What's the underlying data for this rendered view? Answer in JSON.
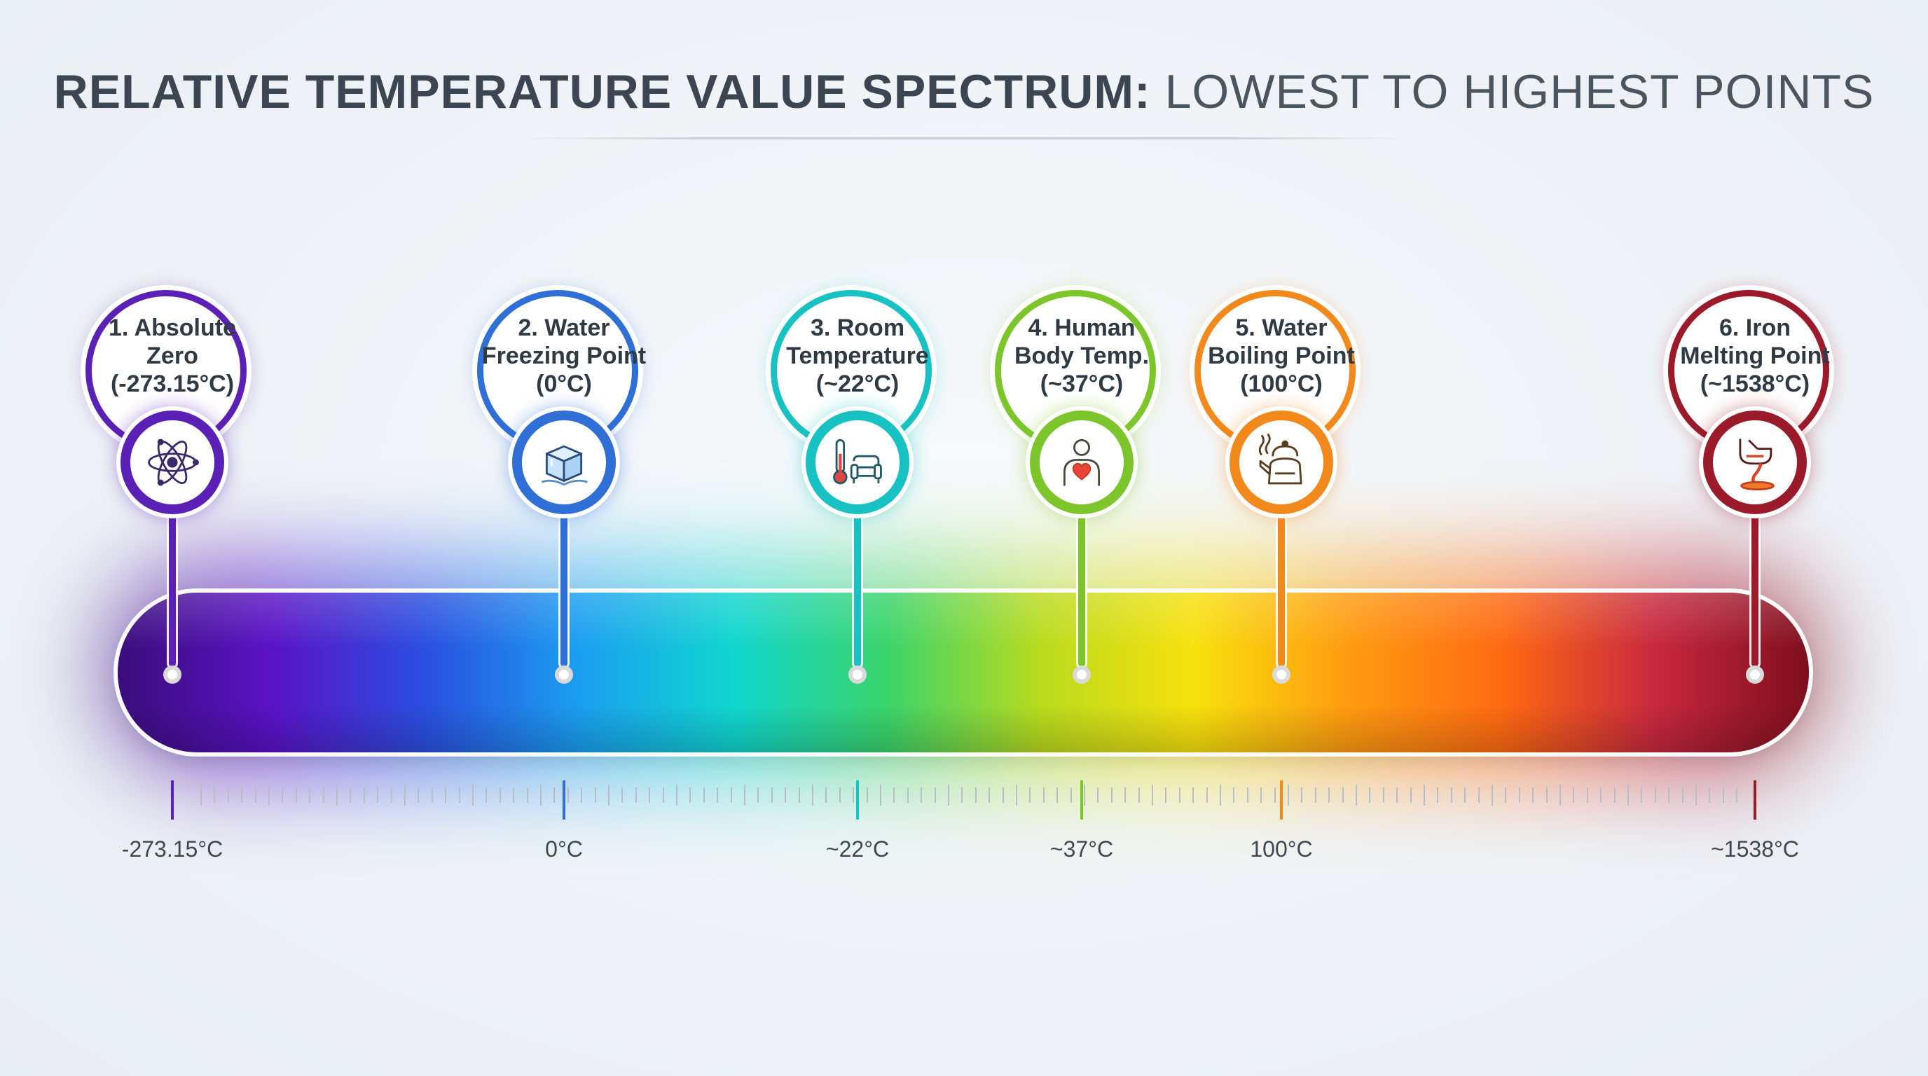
{
  "title": {
    "bold_part": "RELATIVE TEMPERATURE VALUE SPECTRUM:",
    "light_part": "LOWEST TO HIGHEST POINTS"
  },
  "spectrum": {
    "gradient_colors": [
      "#3a0d7a",
      "#5a12c7",
      "#2a4fe0",
      "#1a9ff0",
      "#10d6cf",
      "#3ad46a",
      "#b9db1e",
      "#f7e10d",
      "#ff9b10",
      "#ff6a12",
      "#c8283e",
      "#7e0e1e"
    ]
  },
  "points": [
    {
      "label": "1. Absolute\nZero\n(-273.15°C)",
      "axis_label": "-273.15°C",
      "value_c": -273.15,
      "color": "#5b21b6",
      "icon": "atom-icon"
    },
    {
      "label": "2. Water\nFreezing Point\n(0°C)",
      "axis_label": "0°C",
      "value_c": 0,
      "color": "#2f6fd6",
      "icon": "ice-cube-icon"
    },
    {
      "label": "3. Room\nTemperature\n(~22°C)",
      "axis_label": "~22°C",
      "value_c": 22,
      "color": "#19c2c2",
      "icon": "thermometer-armchair-icon"
    },
    {
      "label": "4. Human\nBody Temp.\n(~37°C)",
      "axis_label": "~37°C",
      "value_c": 37,
      "color": "#7cc62c",
      "icon": "person-heart-icon"
    },
    {
      "label": "5. Water\nBoiling Point\n(100°C)",
      "axis_label": "100°C",
      "value_c": 100,
      "color": "#f2891c",
      "icon": "kettle-icon"
    },
    {
      "label": "6. Iron\nMelting Point\n(~1538°C)",
      "axis_label": "~1538°C",
      "value_c": 1538,
      "color": "#9b1b2b",
      "icon": "molten-iron-icon"
    }
  ]
}
